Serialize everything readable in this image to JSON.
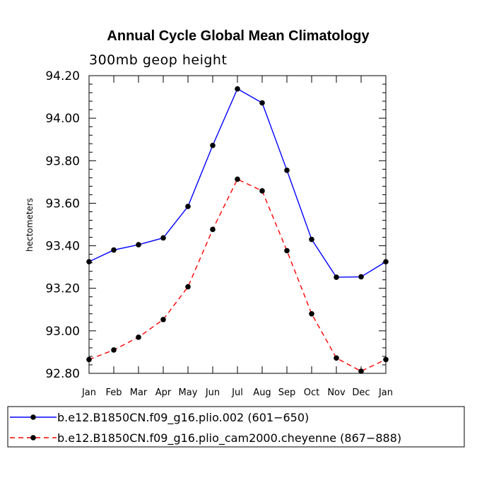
{
  "chart_data": {
    "type": "line",
    "title": "Annual Cycle Global Mean Climatology",
    "subtitle": "300mb geop height",
    "xlabel": "",
    "ylabel": "hectometers",
    "categories": [
      "Jan",
      "Feb",
      "Mar",
      "Apr",
      "May",
      "Jun",
      "Jul",
      "Aug",
      "Sep",
      "Oct",
      "Nov",
      "Dec",
      "Jan"
    ],
    "ylim": [
      92.8,
      94.2
    ],
    "yticks": [
      "92.80",
      "93.00",
      "93.20",
      "93.40",
      "93.60",
      "93.80",
      "94.00",
      "94.20"
    ],
    "ytick_values": [
      92.8,
      93.0,
      93.2,
      93.4,
      93.6,
      93.8,
      94.0,
      94.2
    ],
    "grid": false,
    "legend_position": "bottom",
    "series": [
      {
        "name": "b.e12.B1850CN.f09_g16.plio.002 (601−650)",
        "color": "#0000ff",
        "dash": "solid",
        "values": [
          93.325,
          93.38,
          93.405,
          93.437,
          93.585,
          93.872,
          94.138,
          94.072,
          93.755,
          93.43,
          93.252,
          93.254,
          93.325
        ]
      },
      {
        "name": "b.e12.B1850CN.f09_g16.plio_cam2000.cheyenne (867−888)",
        "color": "#ff0000",
        "dash": "dashed",
        "values": [
          92.865,
          92.91,
          92.97,
          93.053,
          93.207,
          93.477,
          93.713,
          93.658,
          93.377,
          93.08,
          92.872,
          92.81,
          92.865
        ]
      }
    ]
  }
}
